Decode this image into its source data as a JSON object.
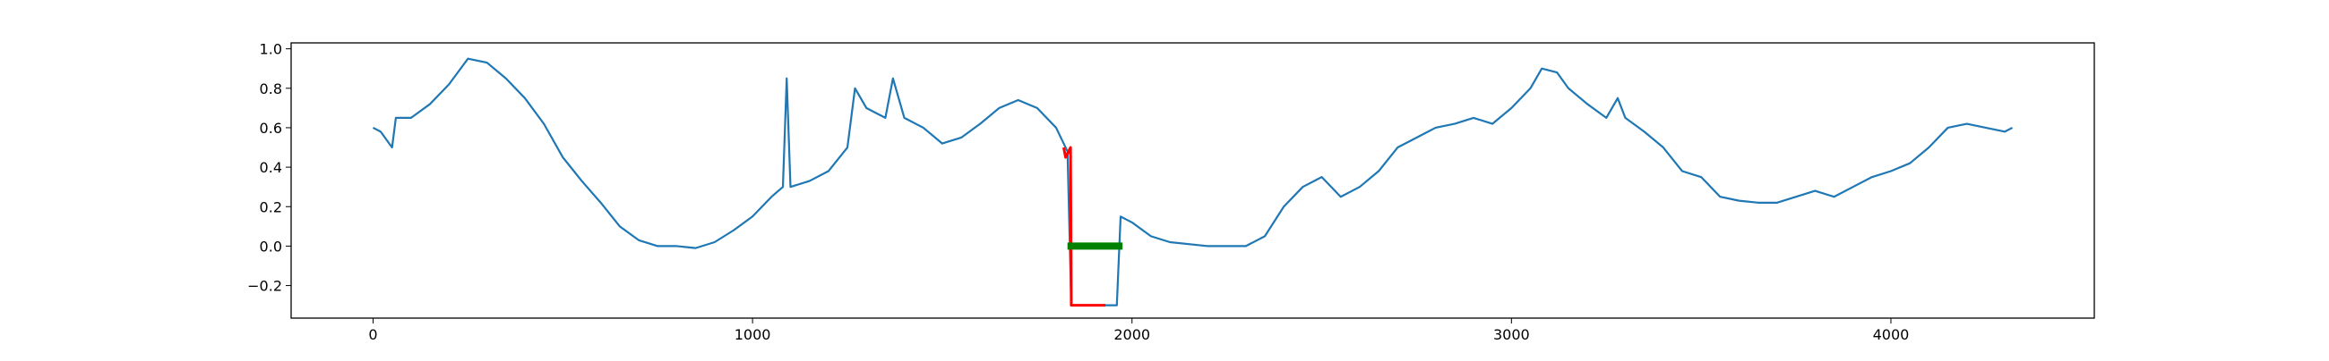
{
  "chart_data": {
    "type": "line",
    "xlim": [
      -216,
      4536
    ],
    "ylim": [
      -0.365,
      1.03
    ],
    "xticks": [
      0,
      1000,
      2000,
      3000,
      4000
    ],
    "yticks": [
      {
        "value": -0.2,
        "label": "−0.2"
      },
      {
        "value": 0,
        "label": "0.0"
      },
      0.2,
      0.4,
      0.6,
      0.8,
      {
        "value": 1,
        "label": "1.0"
      }
    ],
    "series": [
      {
        "color": "#1f77b4",
        "x": [
          0,
          20,
          50,
          60,
          100,
          150,
          200,
          250,
          300,
          350,
          400,
          450,
          500,
          550,
          600,
          650,
          700,
          750,
          800,
          850,
          900,
          950,
          1000,
          1050,
          1080,
          1090,
          1100,
          1150,
          1200,
          1250,
          1270,
          1300,
          1350,
          1370,
          1400,
          1450,
          1500,
          1550,
          1600,
          1650,
          1700,
          1750,
          1800,
          1830,
          1840,
          1900,
          1960,
          1970,
          2000,
          2050,
          2100,
          2200,
          2300,
          2350,
          2400,
          2450,
          2500,
          2550,
          2600,
          2650,
          2700,
          2750,
          2800,
          2850,
          2900,
          2950,
          3000,
          3050,
          3080,
          3120,
          3150,
          3200,
          3250,
          3280,
          3300,
          3350,
          3400,
          3450,
          3500,
          3550,
          3600,
          3650,
          3700,
          3750,
          3800,
          3850,
          3900,
          3950,
          4000,
          4050,
          4100,
          4150,
          4200,
          4250,
          4300,
          4320
        ],
        "values": [
          0.6,
          0.58,
          0.5,
          0.65,
          0.65,
          0.72,
          0.82,
          0.95,
          0.93,
          0.85,
          0.75,
          0.62,
          0.45,
          0.33,
          0.22,
          0.1,
          0.03,
          0.0,
          0.0,
          -0.01,
          0.02,
          0.08,
          0.15,
          0.25,
          0.3,
          0.85,
          0.3,
          0.33,
          0.38,
          0.5,
          0.8,
          0.7,
          0.65,
          0.85,
          0.65,
          0.6,
          0.52,
          0.55,
          0.62,
          0.7,
          0.74,
          0.7,
          0.6,
          0.48,
          -0.3,
          -0.3,
          -0.3,
          0.15,
          0.12,
          0.05,
          0.02,
          0.0,
          0.0,
          0.05,
          0.2,
          0.3,
          0.35,
          0.25,
          0.3,
          0.38,
          0.5,
          0.55,
          0.6,
          0.62,
          0.65,
          0.62,
          0.7,
          0.8,
          0.9,
          0.88,
          0.8,
          0.72,
          0.65,
          0.75,
          0.65,
          0.58,
          0.5,
          0.38,
          0.35,
          0.25,
          0.23,
          0.22,
          0.22,
          0.25,
          0.28,
          0.25,
          0.3,
          0.35,
          0.38,
          0.42,
          0.5,
          0.6,
          0.62,
          0.6,
          0.58,
          0.6
        ]
      },
      {
        "color": "#ff0000",
        "width": 3,
        "x": [
          1820,
          1825,
          1838,
          1840,
          1900,
          1930
        ],
        "values": [
          0.5,
          0.45,
          0.5,
          -0.3,
          -0.3,
          -0.3
        ]
      },
      {
        "color": "#008000",
        "width": 8,
        "x": [
          1830,
          1975
        ],
        "values": [
          0,
          0
        ]
      }
    ]
  }
}
